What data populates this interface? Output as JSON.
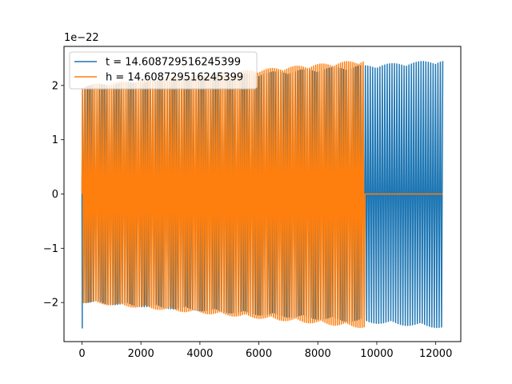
{
  "chart_data": {
    "type": "line",
    "title": "",
    "xlabel": "",
    "ylabel": "",
    "offset_text": "1e−22",
    "xlim": [
      -610,
      12850
    ],
    "ylim": [
      -2.72,
      2.72
    ],
    "xticks": [
      0,
      2000,
      4000,
      6000,
      8000,
      10000,
      12000
    ],
    "xtick_labels": [
      "0",
      "2000",
      "4000",
      "6000",
      "8000",
      "10000",
      "12000"
    ],
    "yticks": [
      -2,
      -1,
      0,
      1,
      2
    ],
    "ytick_labels": [
      "−2",
      "−1",
      "0",
      "1",
      "2"
    ],
    "grid": false,
    "legend_position": "top-left",
    "series": [
      {
        "name": "t = 14.608729516245399",
        "color": "#1f77b4",
        "x_range": [
          0,
          12240
        ],
        "oscillation_period": 82,
        "envelope_start": 2.0,
        "envelope_end": 2.47,
        "early_spike_min": -2.47,
        "early_spike_x": 10
      },
      {
        "name": "h = 14.608729516245399",
        "color": "#ff7f0e",
        "x_range": [
          0,
          9600
        ],
        "oscillation_period": 70,
        "envelope_start": 2.0,
        "envelope_end": 2.47,
        "flat_after_x": 9600,
        "flat_until_x": 12240,
        "flat_value": 0
      }
    ]
  }
}
